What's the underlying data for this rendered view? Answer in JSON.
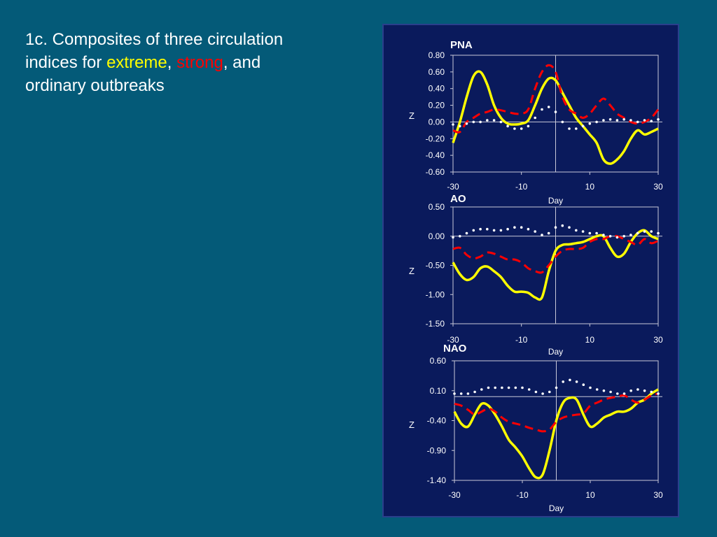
{
  "slide": {
    "title_line1": "1c. Composites of three circulation",
    "title_prefix": "indices for ",
    "extreme_word": "extreme",
    "comma1": ", ",
    "strong_word": "strong",
    "title_rest": ", and",
    "title_line3": "ordinary outbreaks"
  },
  "colors": {
    "background": "#045a78",
    "panel": "#0a1a5c",
    "extreme": "#ffff00",
    "strong": "#ff0000",
    "ordinary": "#ffffff"
  },
  "chart_data": [
    {
      "type": "line",
      "title": "PNA",
      "xlabel": "Day",
      "ylabel": "Z",
      "xlim": [
        -30,
        30
      ],
      "ylim": [
        -0.6,
        0.8
      ],
      "yticks": [
        "0.80",
        "0.60",
        "0.40",
        "0.20",
        "0.00",
        "-0.20",
        "-0.40",
        "-0.60"
      ],
      "xticks": [
        "-30",
        "-10",
        "10",
        "30"
      ],
      "grid": false,
      "series": [
        {
          "style": "solid",
          "color": "#ffff00",
          "x": [
            -30,
            -28,
            -26,
            -24,
            -22,
            -20,
            -18,
            -16,
            -14,
            -12,
            -10,
            -8,
            -6,
            -4,
            -2,
            0,
            2,
            4,
            6,
            8,
            10,
            12,
            14,
            16,
            18,
            20,
            22,
            24,
            26,
            28,
            30
          ],
          "y": [
            -0.25,
            0.0,
            0.3,
            0.55,
            0.6,
            0.45,
            0.2,
            0.05,
            -0.02,
            -0.03,
            -0.02,
            0.02,
            0.2,
            0.4,
            0.52,
            0.5,
            0.35,
            0.2,
            0.05,
            -0.05,
            -0.15,
            -0.25,
            -0.45,
            -0.5,
            -0.45,
            -0.35,
            -0.2,
            -0.1,
            -0.15,
            -0.12,
            -0.08
          ]
        },
        {
          "style": "dashed",
          "color": "#ff0000",
          "x": [
            -30,
            -28,
            -26,
            -24,
            -22,
            -20,
            -18,
            -16,
            -14,
            -12,
            -10,
            -8,
            -6,
            -4,
            -2,
            0,
            2,
            4,
            6,
            8,
            10,
            12,
            14,
            16,
            18,
            20,
            22,
            24,
            26,
            28,
            30
          ],
          "y": [
            -0.1,
            -0.12,
            0.0,
            0.05,
            0.1,
            0.12,
            0.15,
            0.14,
            0.12,
            0.1,
            0.1,
            0.15,
            0.4,
            0.6,
            0.68,
            0.6,
            0.3,
            0.15,
            0.1,
            0.05,
            0.1,
            0.2,
            0.28,
            0.2,
            0.1,
            0.05,
            0.0,
            -0.02,
            0.0,
            0.05,
            0.15
          ]
        },
        {
          "style": "dotted",
          "color": "#ffffff",
          "x": [
            -30,
            -28,
            -26,
            -24,
            -22,
            -20,
            -18,
            -16,
            -14,
            -12,
            -10,
            -8,
            -6,
            -4,
            -2,
            0,
            2,
            4,
            6,
            8,
            10,
            12,
            14,
            16,
            18,
            20,
            22,
            24,
            26,
            28,
            30
          ],
          "y": [
            -0.03,
            -0.05,
            -0.02,
            0.0,
            0.0,
            0.02,
            0.02,
            0.0,
            -0.05,
            -0.08,
            -0.08,
            -0.05,
            0.05,
            0.15,
            0.18,
            0.12,
            0.0,
            -0.08,
            -0.08,
            -0.05,
            -0.02,
            0.0,
            0.02,
            0.03,
            0.02,
            0.03,
            0.02,
            0.0,
            0.02,
            0.01,
            0.03
          ]
        }
      ]
    },
    {
      "type": "line",
      "title": "AO",
      "xlabel": "Day",
      "ylabel": "Z",
      "xlim": [
        -30,
        30
      ],
      "ylim": [
        -1.5,
        0.5
      ],
      "yticks": [
        "0.50",
        "0.00",
        "-0.50",
        "-1.00",
        "-1.50"
      ],
      "xticks": [
        "-30",
        "-10",
        "10",
        "30"
      ],
      "grid": false,
      "series": [
        {
          "style": "solid",
          "color": "#ffff00",
          "x": [
            -30,
            -28,
            -26,
            -24,
            -22,
            -20,
            -18,
            -16,
            -14,
            -12,
            -10,
            -8,
            -6,
            -4,
            -2,
            0,
            2,
            4,
            6,
            8,
            10,
            12,
            14,
            16,
            18,
            20,
            22,
            24,
            26,
            28,
            30
          ],
          "y": [
            -0.45,
            -0.65,
            -0.75,
            -0.7,
            -0.55,
            -0.52,
            -0.6,
            -0.7,
            -0.85,
            -0.95,
            -0.95,
            -0.97,
            -1.05,
            -1.05,
            -0.6,
            -0.25,
            -0.15,
            -0.14,
            -0.12,
            -0.1,
            -0.05,
            0.0,
            0.0,
            -0.2,
            -0.35,
            -0.3,
            -0.1,
            0.05,
            0.1,
            0.0,
            -0.05
          ]
        },
        {
          "style": "dashed",
          "color": "#ff0000",
          "x": [
            -30,
            -28,
            -26,
            -24,
            -22,
            -20,
            -18,
            -16,
            -14,
            -12,
            -10,
            -8,
            -6,
            -4,
            -2,
            0,
            2,
            4,
            6,
            8,
            10,
            12,
            14,
            16,
            18,
            20,
            22,
            24,
            26,
            28,
            30
          ],
          "y": [
            -0.22,
            -0.2,
            -0.32,
            -0.38,
            -0.35,
            -0.28,
            -0.3,
            -0.35,
            -0.4,
            -0.4,
            -0.45,
            -0.55,
            -0.6,
            -0.62,
            -0.5,
            -0.35,
            -0.25,
            -0.22,
            -0.22,
            -0.2,
            -0.1,
            -0.05,
            -0.05,
            0.0,
            0.0,
            -0.05,
            -0.1,
            -0.15,
            -0.05,
            -0.12,
            -0.08
          ]
        },
        {
          "style": "dotted",
          "color": "#ffffff",
          "x": [
            -30,
            -28,
            -26,
            -24,
            -22,
            -20,
            -18,
            -16,
            -14,
            -12,
            -10,
            -8,
            -6,
            -4,
            -2,
            0,
            2,
            4,
            6,
            8,
            10,
            12,
            14,
            16,
            18,
            20,
            22,
            24,
            26,
            28,
            30
          ],
          "y": [
            -0.02,
            0.0,
            0.05,
            0.1,
            0.12,
            0.12,
            0.1,
            0.1,
            0.12,
            0.15,
            0.15,
            0.12,
            0.08,
            0.02,
            0.05,
            0.15,
            0.18,
            0.15,
            0.1,
            0.08,
            0.05,
            0.05,
            0.02,
            0.0,
            -0.02,
            0.0,
            0.02,
            0.05,
            0.08,
            0.08,
            0.05
          ]
        }
      ]
    },
    {
      "type": "line",
      "title": "NAO",
      "xlabel": "Day",
      "ylabel": "Z",
      "xlim": [
        -30,
        30
      ],
      "ylim": [
        -1.4,
        0.6
      ],
      "yticks": [
        "0.60",
        "0.10",
        "-0.40",
        "-0.90",
        "-1.40"
      ],
      "xticks": [
        "-30",
        "-10",
        "10",
        "30"
      ],
      "grid": false,
      "series": [
        {
          "style": "solid",
          "color": "#ffff00",
          "x": [
            -30,
            -28,
            -26,
            -24,
            -22,
            -20,
            -18,
            -16,
            -14,
            -12,
            -10,
            -8,
            -6,
            -4,
            -2,
            0,
            2,
            4,
            6,
            8,
            10,
            12,
            14,
            16,
            18,
            20,
            22,
            24,
            26,
            28,
            30
          ],
          "y": [
            -0.25,
            -0.45,
            -0.5,
            -0.3,
            -0.12,
            -0.15,
            -0.3,
            -0.5,
            -0.72,
            -0.85,
            -1.0,
            -1.2,
            -1.35,
            -1.3,
            -0.9,
            -0.4,
            -0.1,
            -0.02,
            -0.05,
            -0.3,
            -0.5,
            -0.45,
            -0.35,
            -0.3,
            -0.25,
            -0.25,
            -0.2,
            -0.1,
            -0.05,
            0.05,
            0.12
          ]
        },
        {
          "style": "dashed",
          "color": "#ff0000",
          "x": [
            -30,
            -28,
            -26,
            -24,
            -22,
            -20,
            -18,
            -16,
            -14,
            -12,
            -10,
            -8,
            -6,
            -4,
            -2,
            0,
            2,
            4,
            6,
            8,
            10,
            12,
            14,
            16,
            18,
            20,
            22,
            24,
            26,
            28,
            30
          ],
          "y": [
            -0.12,
            -0.15,
            -0.22,
            -0.3,
            -0.25,
            -0.2,
            -0.25,
            -0.35,
            -0.42,
            -0.45,
            -0.48,
            -0.52,
            -0.55,
            -0.58,
            -0.55,
            -0.42,
            -0.35,
            -0.32,
            -0.3,
            -0.28,
            -0.15,
            -0.1,
            -0.05,
            -0.02,
            0.0,
            0.02,
            -0.05,
            -0.1,
            -0.05,
            0.02,
            0.05
          ]
        },
        {
          "style": "dotted",
          "color": "#ffffff",
          "x": [
            -30,
            -28,
            -26,
            -24,
            -22,
            -20,
            -18,
            -16,
            -14,
            -12,
            -10,
            -8,
            -6,
            -4,
            -2,
            0,
            2,
            4,
            6,
            8,
            10,
            12,
            14,
            16,
            18,
            20,
            22,
            24,
            26,
            28,
            30
          ],
          "y": [
            0.05,
            0.05,
            0.05,
            0.08,
            0.12,
            0.15,
            0.15,
            0.15,
            0.15,
            0.15,
            0.15,
            0.12,
            0.08,
            0.05,
            0.08,
            0.15,
            0.25,
            0.28,
            0.25,
            0.2,
            0.15,
            0.12,
            0.1,
            0.08,
            0.05,
            0.05,
            0.1,
            0.12,
            0.1,
            0.08,
            0.05
          ]
        }
      ]
    }
  ]
}
